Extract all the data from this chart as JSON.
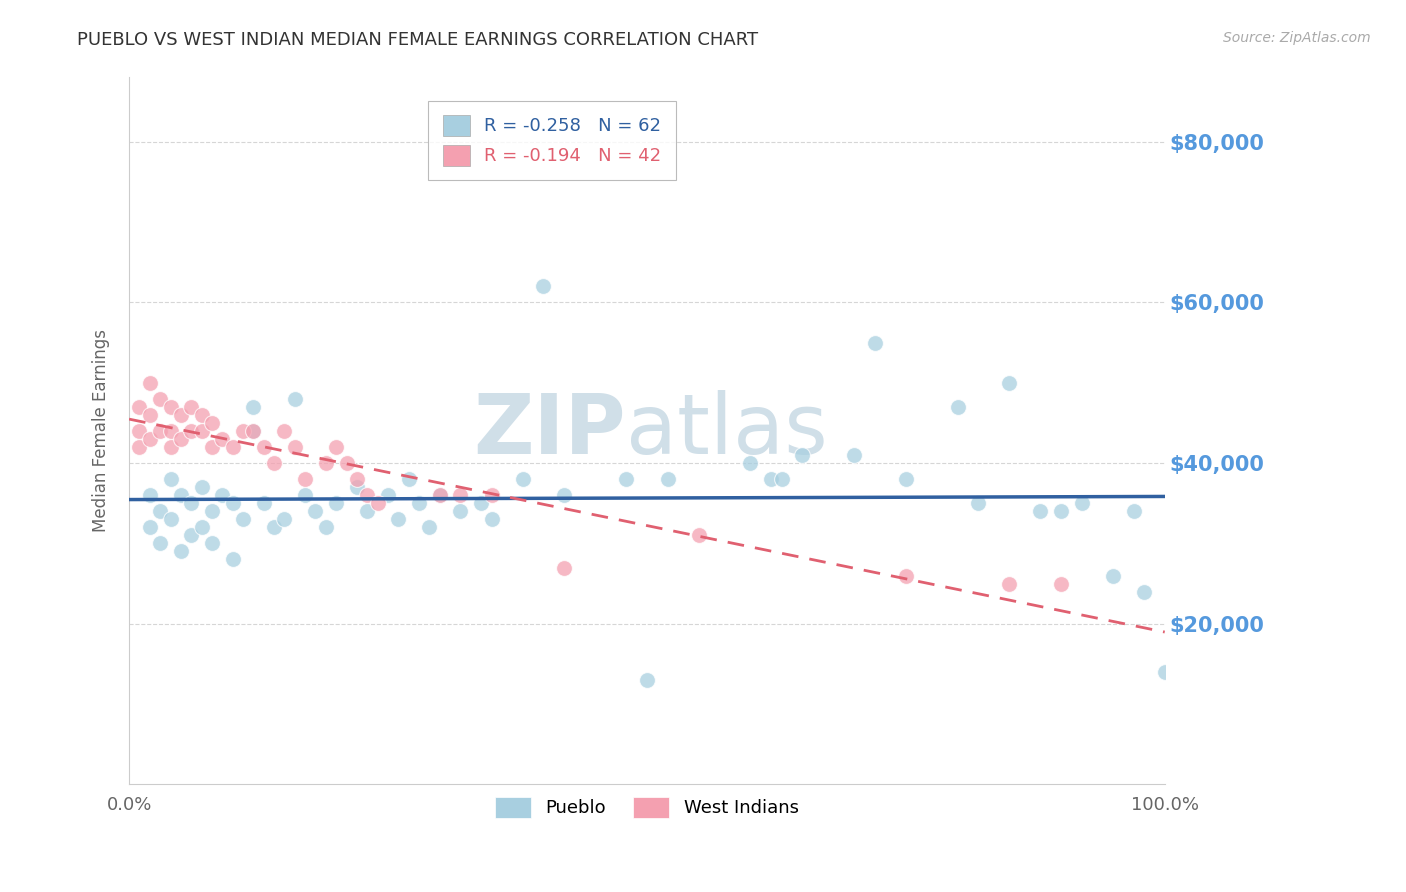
{
  "title": "PUEBLO VS WEST INDIAN MEDIAN FEMALE EARNINGS CORRELATION CHART",
  "source": "Source: ZipAtlas.com",
  "ylabel": "Median Female Earnings",
  "ytick_labels": [
    "$20,000",
    "$40,000",
    "$60,000",
    "$80,000"
  ],
  "ytick_values": [
    20000,
    40000,
    60000,
    80000
  ],
  "ymin": 0,
  "ymax": 88000,
  "xmin": 0.0,
  "xmax": 1.0,
  "legend_pueblo_r": "R = -0.258",
  "legend_pueblo_n": "N = 62",
  "legend_west_r": "R = -0.194",
  "legend_west_n": "N = 42",
  "pueblo_color": "#a8cfe0",
  "west_color": "#f4a0b0",
  "pueblo_line_color": "#3060a0",
  "west_line_color": "#e06070",
  "watermark_zip": "ZIP",
  "watermark_atlas": "atlas",
  "watermark_color": "#d0dfe8",
  "background_color": "#ffffff",
  "grid_color": "#cccccc",
  "ytick_color": "#5599dd",
  "title_color": "#333333",
  "pueblo_scatter_x": [
    0.02,
    0.02,
    0.03,
    0.03,
    0.04,
    0.04,
    0.05,
    0.05,
    0.06,
    0.06,
    0.07,
    0.07,
    0.08,
    0.08,
    0.09,
    0.1,
    0.1,
    0.11,
    0.12,
    0.12,
    0.13,
    0.14,
    0.15,
    0.16,
    0.17,
    0.18,
    0.19,
    0.2,
    0.22,
    0.23,
    0.25,
    0.26,
    0.27,
    0.28,
    0.29,
    0.3,
    0.32,
    0.34,
    0.35,
    0.38,
    0.4,
    0.42,
    0.48,
    0.5,
    0.52,
    0.6,
    0.62,
    0.63,
    0.65,
    0.7,
    0.72,
    0.75,
    0.8,
    0.82,
    0.85,
    0.88,
    0.9,
    0.92,
    0.95,
    0.97,
    0.98,
    1.0
  ],
  "pueblo_scatter_y": [
    36000,
    32000,
    34000,
    30000,
    38000,
    33000,
    36000,
    29000,
    35000,
    31000,
    37000,
    32000,
    34000,
    30000,
    36000,
    35000,
    28000,
    33000,
    47000,
    44000,
    35000,
    32000,
    33000,
    48000,
    36000,
    34000,
    32000,
    35000,
    37000,
    34000,
    36000,
    33000,
    38000,
    35000,
    32000,
    36000,
    34000,
    35000,
    33000,
    38000,
    62000,
    36000,
    38000,
    13000,
    38000,
    40000,
    38000,
    38000,
    41000,
    41000,
    55000,
    38000,
    47000,
    35000,
    50000,
    34000,
    34000,
    35000,
    26000,
    34000,
    24000,
    14000
  ],
  "west_scatter_x": [
    0.01,
    0.01,
    0.01,
    0.02,
    0.02,
    0.02,
    0.03,
    0.03,
    0.04,
    0.04,
    0.04,
    0.05,
    0.05,
    0.06,
    0.06,
    0.07,
    0.07,
    0.08,
    0.08,
    0.09,
    0.1,
    0.11,
    0.12,
    0.13,
    0.14,
    0.15,
    0.16,
    0.17,
    0.19,
    0.2,
    0.21,
    0.22,
    0.23,
    0.24,
    0.3,
    0.32,
    0.35,
    0.42,
    0.55,
    0.75,
    0.85,
    0.9
  ],
  "west_scatter_y": [
    47000,
    44000,
    42000,
    50000,
    46000,
    43000,
    48000,
    44000,
    47000,
    44000,
    42000,
    46000,
    43000,
    47000,
    44000,
    46000,
    44000,
    45000,
    42000,
    43000,
    42000,
    44000,
    44000,
    42000,
    40000,
    44000,
    42000,
    38000,
    40000,
    42000,
    40000,
    38000,
    36000,
    35000,
    36000,
    36000,
    36000,
    27000,
    31000,
    26000,
    25000,
    25000
  ]
}
